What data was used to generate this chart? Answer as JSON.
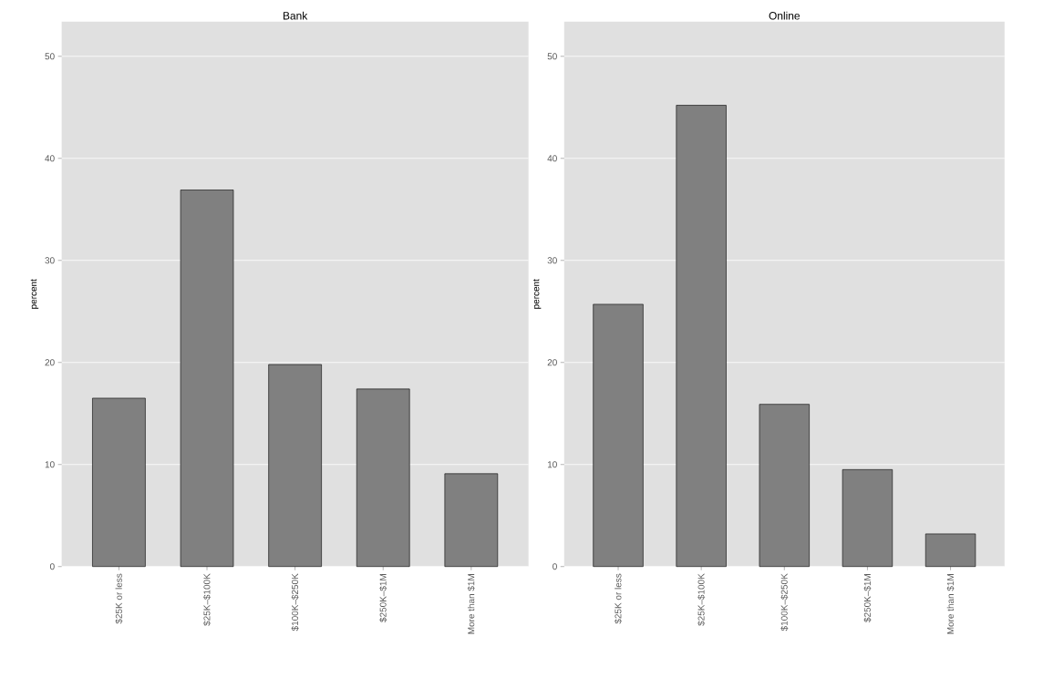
{
  "chart_data": [
    {
      "type": "bar",
      "title": "Bank",
      "ylabel": "percent",
      "categories": [
        "$25K or less",
        "$25K–$100K",
        "$100K–$250K",
        "$250K–$1M",
        "More than $1M"
      ],
      "values": [
        16.5,
        36.9,
        19.8,
        17.4,
        9.1
      ],
      "color": "#808080",
      "ylim": [
        0,
        53.4
      ],
      "yticks": [
        0,
        10,
        20,
        30,
        40,
        50
      ],
      "grid": "y"
    },
    {
      "type": "bar",
      "title": "Online",
      "ylabel": "percent",
      "categories": [
        "$25K or less",
        "$25K–$100K",
        "$100K–$250K",
        "$250K–$1M",
        "More than $1M"
      ],
      "values": [
        25.7,
        45.2,
        15.9,
        9.5,
        3.2
      ],
      "color": "#808080",
      "ylim": [
        0,
        53.4
      ],
      "yticks": [
        0,
        10,
        20,
        30,
        40,
        50
      ],
      "grid": "y"
    }
  ]
}
